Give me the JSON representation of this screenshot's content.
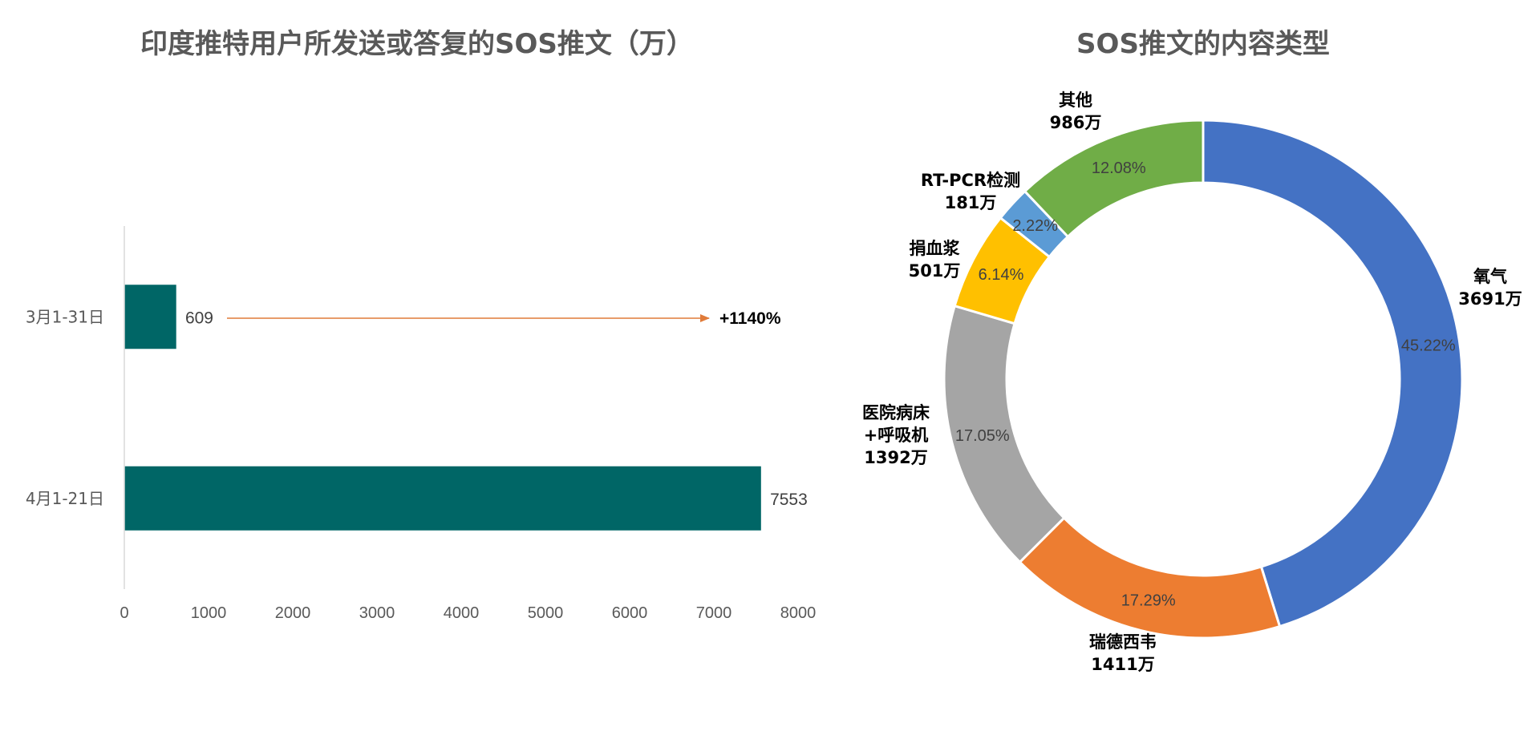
{
  "chart_data": [
    {
      "type": "bar",
      "orientation": "horizontal",
      "title": "印度推特用户所发送或答复的SOS推文（万）",
      "categories": [
        "3月1-31日",
        "4月1-21日"
      ],
      "values": [
        609,
        7553
      ],
      "value_labels": [
        "609",
        "7553"
      ],
      "xlim": [
        0,
        8000
      ],
      "xticks": [
        0,
        1000,
        2000,
        3000,
        4000,
        5000,
        6000,
        7000,
        8000
      ],
      "xtick_labels": [
        "0",
        "1000",
        "2000",
        "3000",
        "4000",
        "5000",
        "6000",
        "7000",
        "8000"
      ],
      "bar_color": "#006666",
      "annotation": {
        "text": "+1140%",
        "arrow_color": "#e07b39"
      },
      "grid": false
    },
    {
      "type": "pie",
      "variant": "donut",
      "title": "SOS推文的内容类型",
      "slices": [
        {
          "name": "氧气",
          "label": "氧气",
          "amount": "3691万",
          "value": 3691,
          "percent": "45.22%",
          "color": "#4472c4"
        },
        {
          "name": "瑞德西韦",
          "label": "瑞德西韦",
          "amount": "1411万",
          "value": 1411,
          "percent": "17.29%",
          "color": "#ed7d31"
        },
        {
          "name": "医院病床+呼吸机",
          "label": "医院病床\n+呼吸机",
          "amount": "1392万",
          "value": 1392,
          "percent": "17.05%",
          "color": "#a5a5a5"
        },
        {
          "name": "捐血浆",
          "label": "捐血浆",
          "amount": "501万",
          "value": 501,
          "percent": "6.14%",
          "color": "#ffc000"
        },
        {
          "name": "RT-PCR检测",
          "label": "RT-PCR检测",
          "amount": "181万",
          "value": 181,
          "percent": "2.22%",
          "color": "#5b9bd5"
        },
        {
          "name": "其他",
          "label": "其他",
          "amount": "986万",
          "value": 986,
          "percent": "12.08%",
          "color": "#70ad47"
        }
      ]
    }
  ]
}
